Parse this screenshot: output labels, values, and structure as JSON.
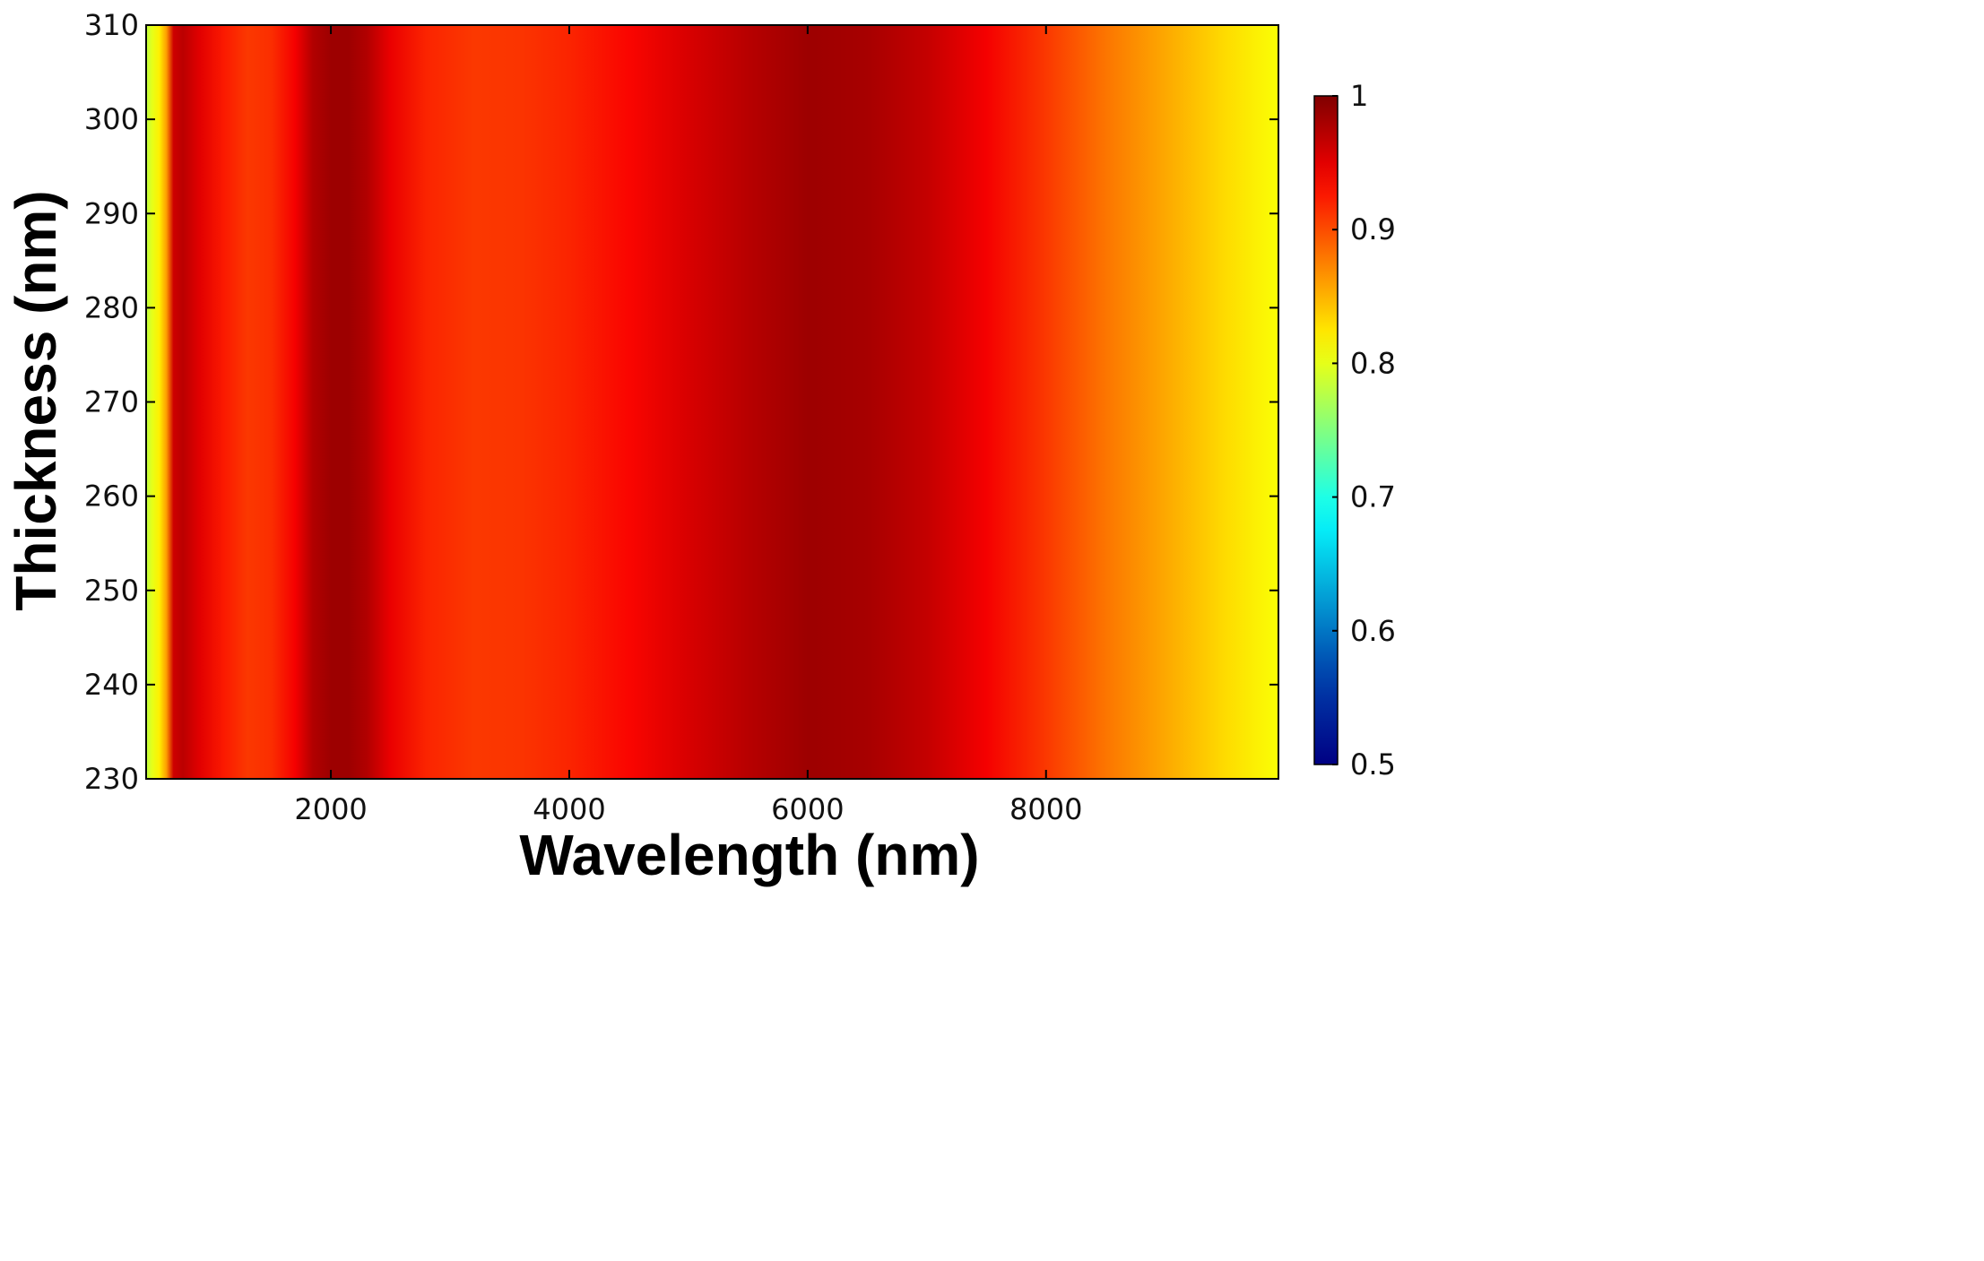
{
  "chart_data": {
    "type": "heatmap",
    "title": "",
    "xlabel": "Wavelength (nm)",
    "ylabel": "Thickness (nm)",
    "xlim": [
      450,
      9950
    ],
    "ylim": [
      230,
      310
    ],
    "x_ticks": [
      2000,
      4000,
      6000,
      8000
    ],
    "y_ticks": [
      230,
      240,
      250,
      260,
      270,
      280,
      290,
      300,
      310
    ],
    "colorbar": {
      "range": [
        0.5,
        1
      ],
      "ticks": [
        0.5,
        0.6,
        0.7,
        0.8,
        0.9,
        1
      ],
      "tick_labels": [
        "0.5",
        "0.6",
        "0.7",
        "0.8",
        "0.9",
        "1"
      ],
      "colormap": "jet"
    },
    "note_data": "values vary with wavelength only (uniform across thickness)",
    "profile_wavelength": [
      450,
      500,
      560,
      620,
      680,
      760,
      900,
      1100,
      1300,
      1500,
      1700,
      1850,
      2000,
      2150,
      2300,
      2500,
      2800,
      3200,
      3600,
      4000,
      4500,
      5000,
      5500,
      6000,
      6500,
      7000,
      7500,
      8000,
      8500,
      9000,
      9500,
      9950
    ],
    "profile_value": [
      0.78,
      0.8,
      0.82,
      0.86,
      0.96,
      0.97,
      0.95,
      0.925,
      0.91,
      0.915,
      0.94,
      0.975,
      0.985,
      0.985,
      0.975,
      0.945,
      0.92,
      0.91,
      0.912,
      0.92,
      0.935,
      0.955,
      0.972,
      0.985,
      0.98,
      0.965,
      0.94,
      0.91,
      0.88,
      0.855,
      0.83,
      0.81
    ]
  }
}
